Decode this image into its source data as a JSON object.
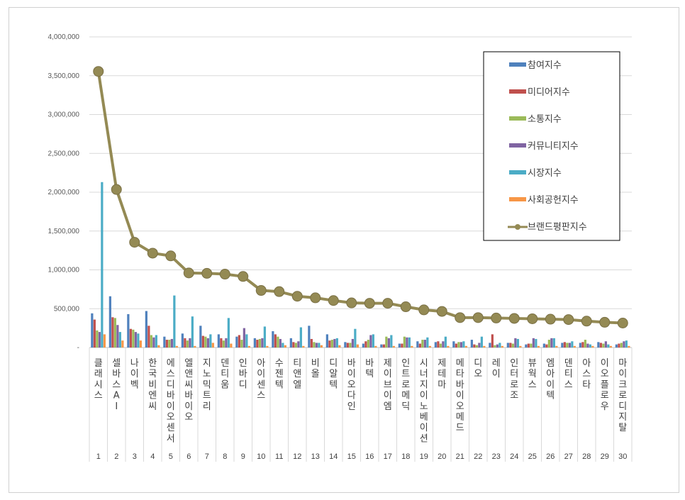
{
  "chart_data": {
    "type": "bar",
    "ylim": [
      0,
      4000000
    ],
    "yticks": [
      "-",
      "500,000",
      "1,000,000",
      "1,500,000",
      "2,000,000",
      "2,500,000",
      "3,000,000",
      "3,500,000",
      "4,000,000"
    ],
    "grid": true,
    "legend_position": "top-right",
    "ranks": [
      "1",
      "2",
      "3",
      "4",
      "5",
      "6",
      "7",
      "8",
      "9",
      "10",
      "11",
      "12",
      "13",
      "14",
      "15",
      "16",
      "17",
      "18",
      "19",
      "20",
      "21",
      "22",
      "23",
      "24",
      "25",
      "26",
      "27",
      "28",
      "29",
      "30"
    ],
    "categories": [
      "클래시스",
      "셀바스AI",
      "나이벡",
      "한국비엔씨",
      "에스디바이오센서",
      "엘앤씨바이오",
      "지노믹트리",
      "덴티움",
      "인바디",
      "아이센스",
      "수젠텍",
      "티앤엘",
      "비올",
      "디알텍",
      "바이오다인",
      "바텍",
      "제이브이엠",
      "인트로메딕",
      "시너지이노베이션",
      "제테마",
      "메타바이오메드",
      "디오",
      "레이",
      "인터로조",
      "뷰웍스",
      "엠아이텍",
      "덴티스",
      "아스타",
      "이오플로우",
      "마이크로디지탈"
    ],
    "series": [
      {
        "name": "참여지수",
        "color": "#4f81bd",
        "values": [
          440000,
          660000,
          430000,
          470000,
          140000,
          180000,
          280000,
          170000,
          140000,
          120000,
          210000,
          120000,
          280000,
          170000,
          70000,
          50000,
          40000,
          50000,
          80000,
          70000,
          80000,
          100000,
          60000,
          60000,
          40000,
          50000,
          60000,
          60000,
          70000,
          40000
        ]
      },
      {
        "name": "미디어지수",
        "color": "#c0504d",
        "values": [
          360000,
          390000,
          240000,
          280000,
          100000,
          120000,
          150000,
          120000,
          160000,
          100000,
          170000,
          70000,
          110000,
          90000,
          60000,
          80000,
          40000,
          50000,
          50000,
          80000,
          50000,
          40000,
          170000,
          60000,
          50000,
          40000,
          70000,
          70000,
          60000,
          50000
        ]
      },
      {
        "name": "소통지수",
        "color": "#9bbb59",
        "values": [
          220000,
          380000,
          230000,
          160000,
          100000,
          90000,
          140000,
          90000,
          100000,
          110000,
          140000,
          60000,
          70000,
          100000,
          60000,
          100000,
          140000,
          140000,
          100000,
          50000,
          70000,
          30000,
          30000,
          50000,
          50000,
          100000,
          60000,
          100000,
          50000,
          60000
        ]
      },
      {
        "name": "커뮤니티지수",
        "color": "#8064a2",
        "values": [
          200000,
          290000,
          200000,
          130000,
          110000,
          120000,
          120000,
          120000,
          250000,
          120000,
          110000,
          80000,
          60000,
          110000,
          110000,
          160000,
          120000,
          130000,
          100000,
          80000,
          70000,
          60000,
          40000,
          120000,
          120000,
          120000,
          60000,
          50000,
          80000,
          80000
        ]
      },
      {
        "name": "시장지수",
        "color": "#4bacc6",
        "values": [
          2130000,
          200000,
          180000,
          160000,
          670000,
          400000,
          170000,
          380000,
          170000,
          270000,
          60000,
          260000,
          60000,
          120000,
          240000,
          170000,
          160000,
          130000,
          130000,
          140000,
          80000,
          140000,
          60000,
          110000,
          110000,
          120000,
          80000,
          40000,
          40000,
          90000
        ]
      },
      {
        "name": "사회공헌지수",
        "color": "#f79646",
        "values": [
          170000,
          90000,
          90000,
          30000,
          20000,
          20000,
          60000,
          50000,
          20000,
          20000,
          30000,
          20000,
          30000,
          30000,
          40000,
          20000,
          20000,
          20000,
          20000,
          20000,
          20000,
          20000,
          20000,
          20000,
          20000,
          20000,
          20000,
          20000,
          20000,
          20000
        ]
      }
    ],
    "line": {
      "name": "브랜드평판지수",
      "color": "#948a54",
      "values": [
        3555000,
        2035000,
        1355000,
        1215000,
        1180000,
        960000,
        955000,
        945000,
        915000,
        735000,
        720000,
        660000,
        640000,
        605000,
        575000,
        570000,
        570000,
        525000,
        485000,
        465000,
        385000,
        385000,
        380000,
        375000,
        370000,
        365000,
        360000,
        340000,
        325000,
        315000
      ]
    }
  }
}
